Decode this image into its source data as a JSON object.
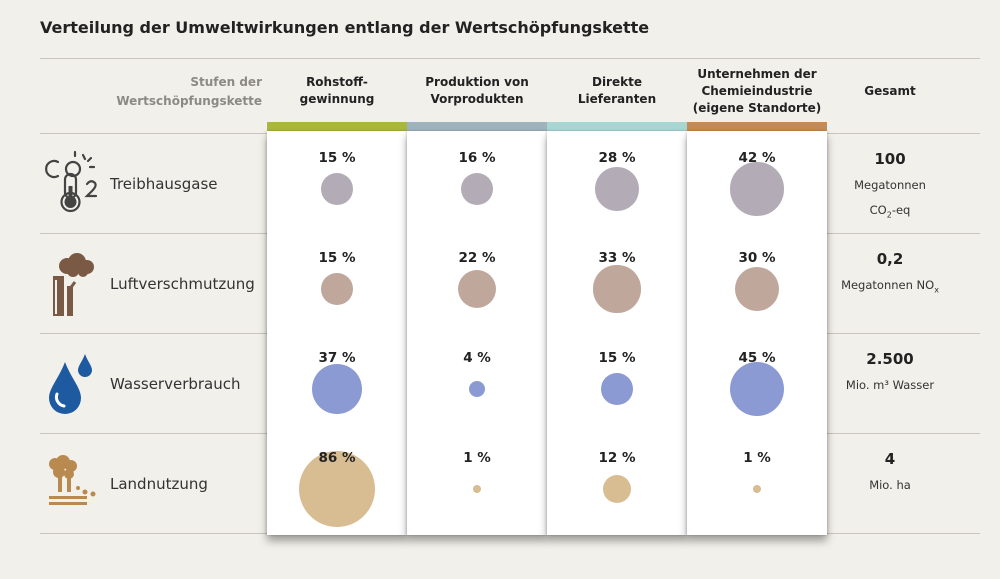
{
  "title": "Verteilung der Umweltwirkungen entlang der Wertschöpfungskette",
  "header": {
    "stage_label_line1": "Stufen der",
    "stage_label_line2": "Wertschöpfungskette",
    "total_label": "Gesamt"
  },
  "columns": [
    {
      "line1": "Rohstoff-",
      "line2": "gewinnung",
      "line3": "",
      "color": "#a9b83a"
    },
    {
      "line1": "Produktion von",
      "line2": "Vorprodukten",
      "line3": "",
      "color": "#9fb3bf"
    },
    {
      "line1": "Direkte",
      "line2": "Lieferanten",
      "line3": "",
      "color": "#a8d7d3"
    },
    {
      "line1": "Unternehmen der",
      "line2": "Chemieindustrie",
      "line3": "(eigene Standorte)",
      "color": "#c88a52"
    }
  ],
  "rows": [
    {
      "label": "Treibhausgase",
      "icon": "thermometer-co2-icon",
      "bubble_color": "#b3acb7",
      "cells": [
        "15 %",
        "16 %",
        "28 %",
        "42 %"
      ],
      "total_value": "100",
      "unit_line1": "Megatonnen",
      "unit_line2_main": "CO",
      "unit_line2_sub": "2",
      "unit_line2_tail": "-eq"
    },
    {
      "label": "Luftverschmutzung",
      "icon": "factory-smoke-icon",
      "bubble_color": "#bfa79b",
      "cells": [
        "15 %",
        "22 %",
        "33 %",
        "30 %"
      ],
      "total_value": "0,2",
      "unit_line1": "",
      "unit_line2_main": "Megatonnen NO",
      "unit_line2_sub": "x",
      "unit_line2_tail": ""
    },
    {
      "label": "Wasserverbrauch",
      "icon": "water-drops-icon",
      "bubble_color": "#8c9ad4",
      "cells": [
        "37 %",
        "4 %",
        "15 %",
        "45 %"
      ],
      "total_value": "2.500",
      "unit_line1": "",
      "unit_line2_main": "Mio. m³ Wasser",
      "unit_line2_sub": "",
      "unit_line2_tail": ""
    },
    {
      "label": "Landnutzung",
      "icon": "land-trees-icon",
      "bubble_color": "#d8bc92",
      "cells": [
        "86 %",
        "1 %",
        "12 %",
        "1 %"
      ],
      "total_value": "4",
      "unit_line1": "",
      "unit_line2_main": "Mio. ha",
      "unit_line2_sub": "",
      "unit_line2_tail": ""
    }
  ],
  "chart_data": {
    "type": "table",
    "title": "Verteilung der Umweltwirkungen entlang der Wertschöpfungskette",
    "categories": [
      "Rohstoff-gewinnung",
      "Produktion von Vorprodukten",
      "Direkte Lieferanten",
      "Unternehmen der Chemieindustrie (eigene Standorte)"
    ],
    "series": [
      {
        "name": "Treibhausgase",
        "values": [
          15,
          16,
          28,
          42
        ],
        "total": "100 Megatonnen CO2-eq"
      },
      {
        "name": "Luftverschmutzung",
        "values": [
          15,
          22,
          33,
          30
        ],
        "total": "0,2 Megatonnen NOx"
      },
      {
        "name": "Wasserverbrauch",
        "values": [
          37,
          4,
          15,
          45
        ],
        "total": "2.500 Mio. m³ Wasser"
      },
      {
        "name": "Landnutzung",
        "values": [
          86,
          1,
          12,
          1
        ],
        "total": "4 Mio. ha"
      }
    ],
    "unit": "%"
  }
}
